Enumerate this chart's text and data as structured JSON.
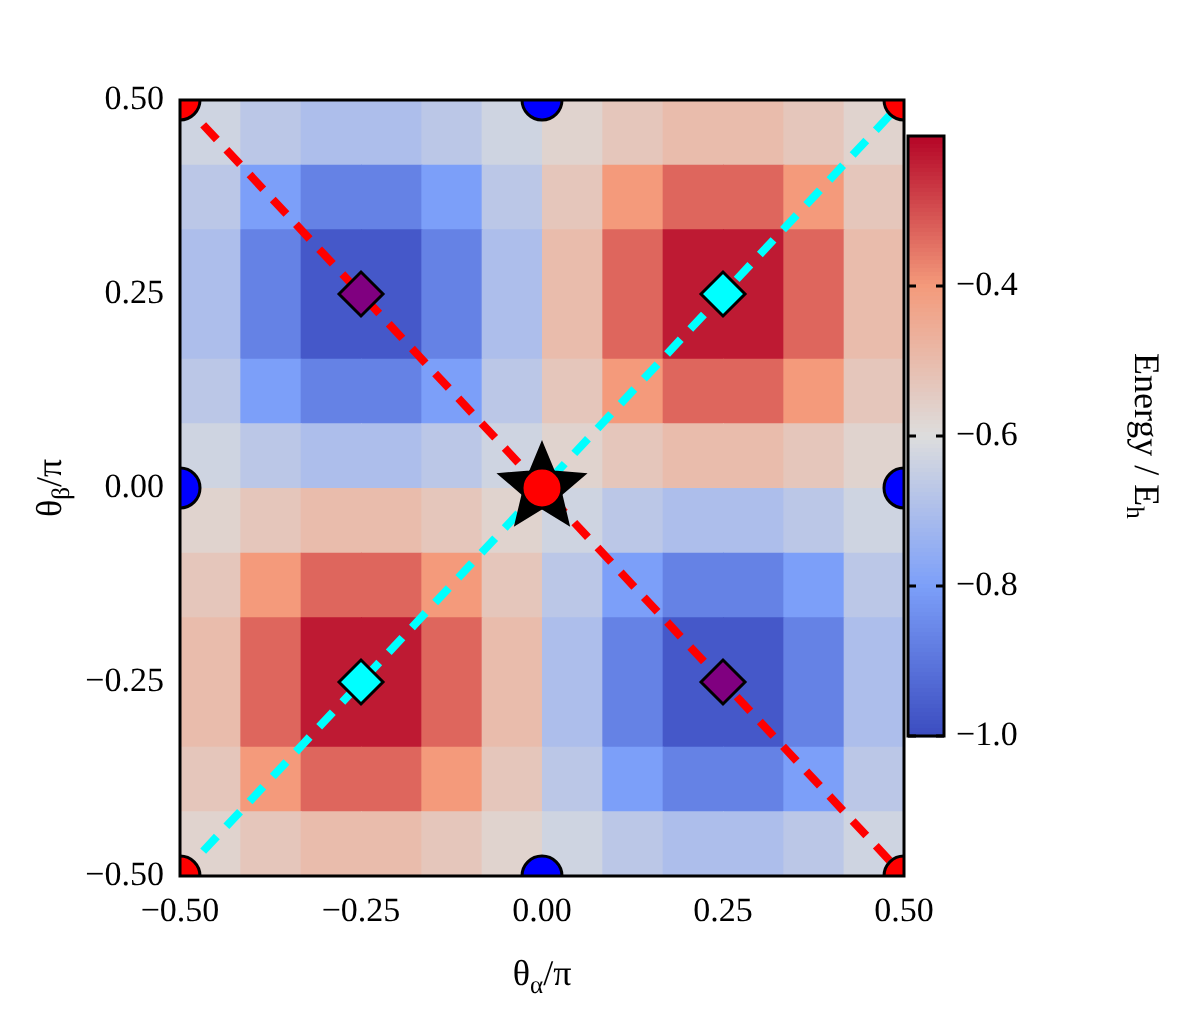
{
  "chart_data": {
    "type": "heatmap",
    "xlabel": "θ$_{α}$/π",
    "ylabel": "θ$_{β}$/π",
    "clabel": "Energy / E$_{h}$",
    "xlim": [
      -0.5,
      0.5
    ],
    "ylim": [
      -0.5,
      0.5
    ],
    "xticks": [
      {
        "value": -0.5,
        "label": "−0.50"
      },
      {
        "value": -0.25,
        "label": "−0.25"
      },
      {
        "value": 0,
        "label": "0.00"
      },
      {
        "value": 0.25,
        "label": "0.25"
      },
      {
        "value": 0.5,
        "label": "0.50"
      }
    ],
    "yticks": [
      {
        "value": -0.5,
        "label": "−0.50"
      },
      {
        "value": -0.25,
        "label": "−0.25"
      },
      {
        "value": 0,
        "label": "0.00"
      },
      {
        "value": 0.25,
        "label": "0.25"
      },
      {
        "value": 0.5,
        "label": "0.50"
      }
    ],
    "clim": [
      -1.0,
      -0.2
    ],
    "cticks": [
      {
        "value": -1.0,
        "label": "−1.0"
      },
      {
        "value": -0.8,
        "label": "−0.8"
      },
      {
        "value": -0.6,
        "label": "−0.6"
      },
      {
        "value": -0.4,
        "label": "−0.4"
      }
    ],
    "cells": [
      [
        -0.63,
        -0.67,
        -0.7,
        -0.7,
        -0.67,
        -0.63,
        -0.57,
        -0.53,
        -0.5,
        -0.5,
        -0.53,
        -0.57
      ],
      [
        -0.67,
        -0.8,
        -0.87,
        -0.87,
        -0.8,
        -0.67,
        -0.53,
        -0.4,
        -0.33,
        -0.33,
        -0.4,
        -0.53
      ],
      [
        -0.7,
        -0.87,
        -0.97,
        -0.97,
        -0.87,
        -0.7,
        -0.5,
        -0.33,
        -0.23,
        -0.23,
        -0.33,
        -0.5
      ],
      [
        -0.7,
        -0.87,
        -0.97,
        -0.97,
        -0.87,
        -0.7,
        -0.5,
        -0.33,
        -0.23,
        -0.23,
        -0.33,
        -0.5
      ],
      [
        -0.67,
        -0.8,
        -0.87,
        -0.87,
        -0.8,
        -0.67,
        -0.53,
        -0.4,
        -0.33,
        -0.33,
        -0.4,
        -0.53
      ],
      [
        -0.63,
        -0.67,
        -0.7,
        -0.7,
        -0.67,
        -0.63,
        -0.57,
        -0.53,
        -0.5,
        -0.5,
        -0.53,
        -0.57
      ],
      [
        -0.57,
        -0.53,
        -0.5,
        -0.5,
        -0.53,
        -0.57,
        -0.63,
        -0.67,
        -0.7,
        -0.7,
        -0.67,
        -0.63
      ],
      [
        -0.53,
        -0.4,
        -0.33,
        -0.33,
        -0.4,
        -0.53,
        -0.67,
        -0.8,
        -0.87,
        -0.87,
        -0.8,
        -0.67
      ],
      [
        -0.5,
        -0.33,
        -0.23,
        -0.23,
        -0.33,
        -0.5,
        -0.7,
        -0.87,
        -0.97,
        -0.97,
        -0.87,
        -0.7
      ],
      [
        -0.5,
        -0.33,
        -0.23,
        -0.23,
        -0.33,
        -0.5,
        -0.7,
        -0.87,
        -0.97,
        -0.97,
        -0.87,
        -0.7
      ],
      [
        -0.53,
        -0.4,
        -0.33,
        -0.33,
        -0.4,
        -0.53,
        -0.67,
        -0.8,
        -0.87,
        -0.87,
        -0.8,
        -0.67
      ],
      [
        -0.57,
        -0.53,
        -0.5,
        -0.5,
        -0.53,
        -0.57,
        -0.63,
        -0.67,
        -0.7,
        -0.7,
        -0.67,
        -0.63
      ]
    ],
    "series": [
      {
        "type": "scatter",
        "color": "#00ffff",
        "marker": "diamond",
        "x": [
          0.25,
          -0.25
        ],
        "values": [
          0.25,
          -0.25
        ]
      },
      {
        "type": "scatter",
        "color": "#800080",
        "marker": "diamond",
        "x": [
          -0.25,
          0.25
        ],
        "values": [
          0.25,
          -0.25
        ]
      },
      {
        "type": "scatter",
        "color": "#ff0000",
        "marker": "circle",
        "x": [
          0
        ],
        "values": [
          0
        ]
      },
      {
        "type": "scatter",
        "color": "#000000",
        "marker": "star",
        "x": [
          0
        ],
        "values": [
          0
        ]
      },
      {
        "type": "scatter",
        "color": "#ff0000",
        "marker": "circle",
        "x": [
          -0.5,
          0.5,
          -0.5,
          0.5
        ],
        "values": [
          0.5,
          0.5,
          -0.5,
          -0.5
        ]
      },
      {
        "type": "scatter",
        "color": "#0000ff",
        "marker": "circle",
        "x": [
          0,
          0,
          -0.5,
          0.5
        ],
        "values": [
          0.5,
          -0.5,
          0,
          0
        ]
      },
      {
        "type": "line",
        "color": "#00ffff",
        "line_style": "dashed",
        "marker": "none",
        "x": [
          -0.5,
          0.5
        ],
        "values": [
          -0.5,
          0.5
        ]
      },
      {
        "type": "line",
        "color": "#ff0000",
        "line_style": "dashed",
        "marker": "none",
        "x": [
          -0.5,
          0.5
        ],
        "values": [
          0.5,
          -0.5
        ]
      }
    ]
  }
}
